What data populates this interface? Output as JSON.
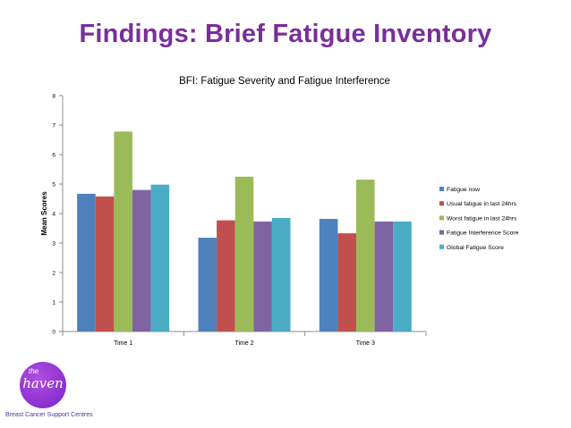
{
  "slide": {
    "title": "Findings: Brief Fatigue Inventory"
  },
  "logo": {
    "small_text": "the",
    "text": "haven",
    "tagline": "Breast Cancer Support Centres"
  },
  "colors": {
    "title": "#7a2e9a",
    "series": [
      "#4f81bd",
      "#c0504d",
      "#9bbb59",
      "#8064a2",
      "#4bacc6"
    ]
  },
  "chart_data": {
    "type": "bar",
    "title": "BFI: Fatigue Severity and Fatigue Interference",
    "xlabel": "",
    "ylabel": "Mean Scores",
    "ylim": [
      0,
      8
    ],
    "yticks": [
      0,
      1,
      2,
      3,
      4,
      5,
      6,
      7,
      8
    ],
    "categories": [
      "Time 1",
      "Time 2",
      "Time 3"
    ],
    "series": [
      {
        "name": "Fatigue now",
        "values": [
          4.67,
          3.18,
          3.82
        ]
      },
      {
        "name": "Usual fatigue in last 24hrs",
        "values": [
          4.58,
          3.77,
          3.33
        ]
      },
      {
        "name": "Worst fatigue in last 24hrs",
        "values": [
          6.78,
          5.25,
          5.15
        ]
      },
      {
        "name": "Fatigue Interference Score",
        "values": [
          4.8,
          3.73,
          3.73
        ]
      },
      {
        "name": "Global Fatigue Score",
        "values": [
          4.98,
          3.85,
          3.73
        ]
      }
    ],
    "grid": false,
    "legend": "right"
  }
}
